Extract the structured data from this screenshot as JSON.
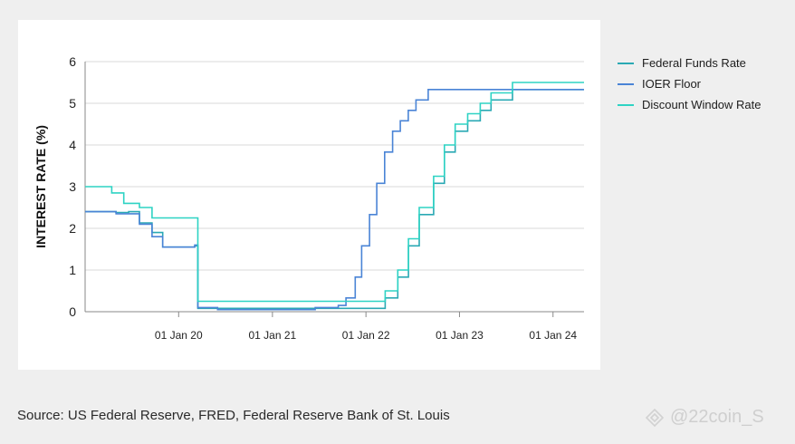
{
  "chart_data": {
    "type": "line",
    "title": "",
    "xlabel": "",
    "ylabel": "INTEREST RATE (%)",
    "ylim": [
      0,
      6
    ],
    "y_ticks": [
      "0",
      "1",
      "2",
      "3",
      "4",
      "5",
      "6"
    ],
    "x_ticks": [
      {
        "label": "01 Jan 20",
        "date": "2020-01-01"
      },
      {
        "label": "01 Jan 21",
        "date": "2021-01-01"
      },
      {
        "label": "01 Jan 22",
        "date": "2022-01-01"
      },
      {
        "label": "01 Jan 23",
        "date": "2023-01-01"
      },
      {
        "label": "01 Jan 24",
        "date": "2024-01-01"
      }
    ],
    "xlim": [
      "2019-01-01",
      "2024-05-01"
    ],
    "grid": "horizontal",
    "legend_position": "right",
    "series": [
      {
        "name": "Federal Funds Rate",
        "color": "#2aa9b4",
        "points": [
          [
            "2019-01-01",
            2.4
          ],
          [
            "2019-05-01",
            2.38
          ],
          [
            "2019-06-20",
            2.4
          ],
          [
            "2019-08-01",
            2.13
          ],
          [
            "2019-09-19",
            1.9
          ],
          [
            "2019-10-31",
            1.55
          ],
          [
            "2020-03-04",
            1.58
          ],
          [
            "2020-03-16",
            0.08
          ],
          [
            "2020-06-01",
            0.08
          ],
          [
            "2021-06-17",
            0.08
          ],
          [
            "2022-03-17",
            0.33
          ],
          [
            "2022-05-05",
            0.83
          ],
          [
            "2022-06-16",
            1.58
          ],
          [
            "2022-07-28",
            2.33
          ],
          [
            "2022-09-22",
            3.08
          ],
          [
            "2022-11-03",
            3.83
          ],
          [
            "2022-12-15",
            4.33
          ],
          [
            "2023-02-02",
            4.58
          ],
          [
            "2023-03-23",
            4.83
          ],
          [
            "2023-05-04",
            5.08
          ],
          [
            "2023-07-27",
            5.33
          ],
          [
            "2024-05-01",
            5.33
          ]
        ]
      },
      {
        "name": "IOER Floor",
        "color": "#4a84d6",
        "points": [
          [
            "2019-01-01",
            2.4
          ],
          [
            "2019-05-02",
            2.35
          ],
          [
            "2019-08-01",
            2.1
          ],
          [
            "2019-09-19",
            1.8
          ],
          [
            "2019-10-31",
            1.55
          ],
          [
            "2020-03-04",
            1.6
          ],
          [
            "2020-03-16",
            0.1
          ],
          [
            "2020-06-01",
            0.05
          ],
          [
            "2021-06-17",
            0.1
          ],
          [
            "2021-09-15",
            0.15
          ],
          [
            "2021-10-15",
            0.33
          ],
          [
            "2021-11-20",
            0.83
          ],
          [
            "2021-12-15",
            1.58
          ],
          [
            "2022-01-15",
            2.33
          ],
          [
            "2022-02-12",
            3.08
          ],
          [
            "2022-03-15",
            3.83
          ],
          [
            "2022-04-15",
            4.33
          ],
          [
            "2022-05-15",
            4.58
          ],
          [
            "2022-06-15",
            4.83
          ],
          [
            "2022-07-15",
            5.08
          ],
          [
            "2022-09-01",
            5.33
          ],
          [
            "2024-05-01",
            5.33
          ]
        ]
      },
      {
        "name": "Discount Window Rate",
        "color": "#2ed3c4",
        "points": [
          [
            "2019-01-01",
            3.0
          ],
          [
            "2019-03-15",
            3.0
          ],
          [
            "2019-04-15",
            2.85
          ],
          [
            "2019-06-01",
            2.6
          ],
          [
            "2019-08-01",
            2.5
          ],
          [
            "2019-09-19",
            2.25
          ],
          [
            "2020-03-04",
            2.25
          ],
          [
            "2020-03-16",
            0.25
          ],
          [
            "2021-12-31",
            0.25
          ],
          [
            "2022-03-17",
            0.5
          ],
          [
            "2022-05-05",
            1.0
          ],
          [
            "2022-06-16",
            1.75
          ],
          [
            "2022-07-28",
            2.5
          ],
          [
            "2022-09-22",
            3.25
          ],
          [
            "2022-11-03",
            4.0
          ],
          [
            "2022-12-15",
            4.5
          ],
          [
            "2023-02-02",
            4.75
          ],
          [
            "2023-03-23",
            5.0
          ],
          [
            "2023-05-04",
            5.25
          ],
          [
            "2023-07-27",
            5.5
          ],
          [
            "2024-05-01",
            5.5
          ]
        ]
      }
    ]
  },
  "source_text": "Source: US Federal Reserve, FRED, Federal Reserve Bank of St. Louis",
  "watermark_text": "@22coin_S"
}
